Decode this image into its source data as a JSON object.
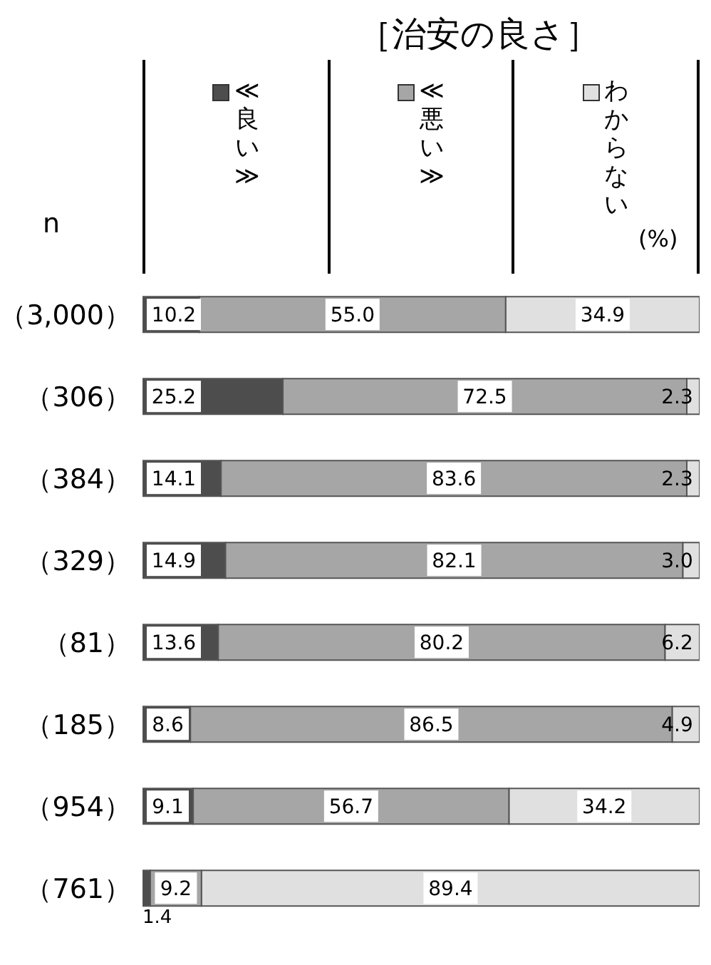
{
  "chart_data": {
    "type": "bar",
    "orientation": "horizontal",
    "stacked": true,
    "title": "［治安の良さ］",
    "annotations": [
      "n",
      "(%)"
    ],
    "categories": [
      "（3,000）",
      "（306）",
      "（384）",
      "（329）",
      "（81）",
      "（185）",
      "（954）",
      "（761）"
    ],
    "series": [
      {
        "name": "≪良い≫",
        "color": "#4d4d4d",
        "values": [
          10.2,
          25.2,
          14.1,
          14.9,
          13.6,
          8.6,
          9.1,
          1.4
        ],
        "value_labels": [
          "10.2",
          "25.2",
          "14.1",
          "14.9",
          "13.6",
          "8.6",
          "9.1",
          "1.4"
        ]
      },
      {
        "name": "≪悪い≫",
        "color": "#a6a6a6",
        "values": [
          55.0,
          72.5,
          83.6,
          82.1,
          80.2,
          86.5,
          56.7,
          9.2
        ],
        "value_labels": [
          "55.0",
          "72.5",
          "83.6",
          "82.1",
          "80.2",
          "86.5",
          "56.7",
          "9.2"
        ]
      },
      {
        "name": "わからない",
        "color": "#e0e0e0",
        "values": [
          34.9,
          2.3,
          2.3,
          3.0,
          6.2,
          4.9,
          34.2,
          89.4
        ],
        "value_labels": [
          "34.9",
          "2.3",
          "2.3",
          "3.0",
          "6.2",
          "4.9",
          "34.2",
          "89.4"
        ]
      }
    ],
    "xlim": [
      0,
      100
    ],
    "tick_labels": "y",
    "legend": "top"
  }
}
